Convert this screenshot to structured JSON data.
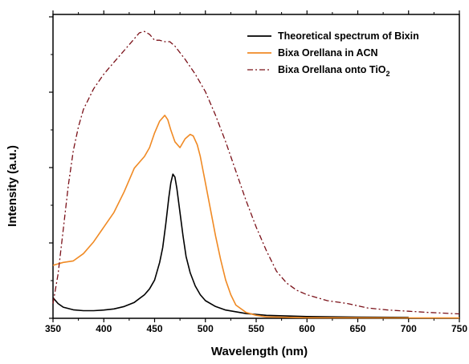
{
  "chart_data": {
    "type": "line",
    "xlabel": "Wavelength (nm)",
    "ylabel": "Intensity (a.u.)",
    "xlim": [
      350,
      750
    ],
    "ylim": [
      0,
      1.0
    ],
    "x_ticks": [
      350,
      400,
      450,
      500,
      550,
      600,
      650,
      700,
      750
    ],
    "y_ticks_labeled": false,
    "grid": false,
    "legend_position": "top-right",
    "series": [
      {
        "name": "Theoretical spectrum of Bixin",
        "color": "#000000",
        "dash": "solid",
        "points": [
          [
            350,
            0.07
          ],
          [
            355,
            0.05
          ],
          [
            360,
            0.038
          ],
          [
            370,
            0.029
          ],
          [
            380,
            0.026
          ],
          [
            390,
            0.026
          ],
          [
            400,
            0.028
          ],
          [
            410,
            0.032
          ],
          [
            420,
            0.04
          ],
          [
            430,
            0.054
          ],
          [
            440,
            0.08
          ],
          [
            445,
            0.1
          ],
          [
            450,
            0.13
          ],
          [
            455,
            0.19
          ],
          [
            458,
            0.24
          ],
          [
            461,
            0.32
          ],
          [
            464,
            0.41
          ],
          [
            466,
            0.46
          ],
          [
            468,
            0.49
          ],
          [
            470,
            0.48
          ],
          [
            472,
            0.44
          ],
          [
            475,
            0.36
          ],
          [
            478,
            0.28
          ],
          [
            481,
            0.21
          ],
          [
            485,
            0.155
          ],
          [
            490,
            0.11
          ],
          [
            495,
            0.08
          ],
          [
            500,
            0.06
          ],
          [
            510,
            0.04
          ],
          [
            520,
            0.028
          ],
          [
            540,
            0.016
          ],
          [
            560,
            0.01
          ],
          [
            600,
            0.006
          ],
          [
            650,
            0.004
          ],
          [
            700,
            0.003
          ]
        ]
      },
      {
        "name": "Bixa Orellana in ACN",
        "color": "#f08a24",
        "dash": "solid",
        "points": [
          [
            350,
            0.18
          ],
          [
            360,
            0.19
          ],
          [
            370,
            0.195
          ],
          [
            380,
            0.22
          ],
          [
            390,
            0.26
          ],
          [
            400,
            0.31
          ],
          [
            410,
            0.36
          ],
          [
            420,
            0.43
          ],
          [
            430,
            0.51
          ],
          [
            435,
            0.53
          ],
          [
            440,
            0.55
          ],
          [
            445,
            0.58
          ],
          [
            450,
            0.63
          ],
          [
            455,
            0.67
          ],
          [
            460,
            0.69
          ],
          [
            463,
            0.675
          ],
          [
            466,
            0.64
          ],
          [
            470,
            0.6
          ],
          [
            475,
            0.58
          ],
          [
            480,
            0.61
          ],
          [
            485,
            0.625
          ],
          [
            488,
            0.62
          ],
          [
            492,
            0.59
          ],
          [
            495,
            0.55
          ],
          [
            500,
            0.46
          ],
          [
            505,
            0.37
          ],
          [
            510,
            0.28
          ],
          [
            515,
            0.2
          ],
          [
            520,
            0.13
          ],
          [
            525,
            0.08
          ],
          [
            530,
            0.045
          ],
          [
            540,
            0.02
          ],
          [
            550,
            0.01
          ],
          [
            560,
            0.005
          ],
          [
            600,
            0.002
          ],
          [
            750,
            0.001
          ]
        ]
      },
      {
        "name": "Bixa Orellana onto TiO",
        "name_subscript": "2",
        "color": "#7a1018",
        "dash": "dashdot",
        "points": [
          [
            350,
            0.05
          ],
          [
            355,
            0.15
          ],
          [
            360,
            0.3
          ],
          [
            365,
            0.45
          ],
          [
            370,
            0.57
          ],
          [
            375,
            0.65
          ],
          [
            380,
            0.71
          ],
          [
            390,
            0.78
          ],
          [
            400,
            0.83
          ],
          [
            410,
            0.87
          ],
          [
            420,
            0.91
          ],
          [
            430,
            0.95
          ],
          [
            435,
            0.97
          ],
          [
            440,
            0.975
          ],
          [
            445,
            0.965
          ],
          [
            450,
            0.945
          ],
          [
            455,
            0.945
          ],
          [
            460,
            0.94
          ],
          [
            465,
            0.94
          ],
          [
            470,
            0.925
          ],
          [
            480,
            0.88
          ],
          [
            490,
            0.83
          ],
          [
            500,
            0.77
          ],
          [
            510,
            0.69
          ],
          [
            520,
            0.6
          ],
          [
            530,
            0.5
          ],
          [
            540,
            0.4
          ],
          [
            550,
            0.31
          ],
          [
            560,
            0.23
          ],
          [
            570,
            0.16
          ],
          [
            580,
            0.12
          ],
          [
            590,
            0.095
          ],
          [
            600,
            0.08
          ],
          [
            620,
            0.06
          ],
          [
            640,
            0.05
          ],
          [
            660,
            0.035
          ],
          [
            680,
            0.028
          ],
          [
            700,
            0.024
          ],
          [
            720,
            0.02
          ],
          [
            750,
            0.015
          ]
        ]
      }
    ]
  }
}
